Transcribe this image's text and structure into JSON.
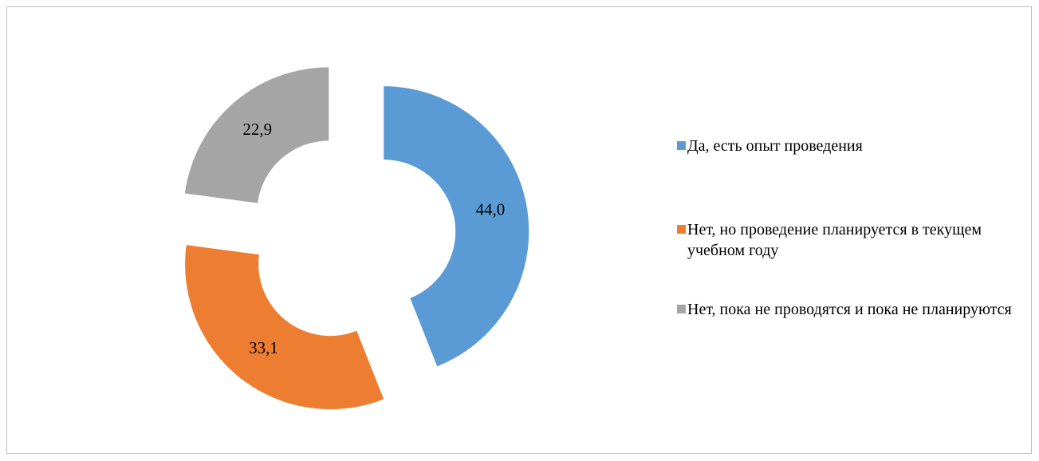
{
  "chart_data": {
    "type": "donut",
    "categories": [
      "Да, есть опыт проведения",
      "Нет, но проведение планируется в текущем учебном году",
      "Нет, пока не проводятся и пока не планируются"
    ],
    "values": [
      44.0,
      33.1,
      22.9
    ],
    "value_labels": [
      "44,0",
      "33,1",
      "22,9"
    ],
    "colors": [
      "#5b9bd5",
      "#ed7d31",
      "#a5a5a5"
    ],
    "legend": "right"
  }
}
